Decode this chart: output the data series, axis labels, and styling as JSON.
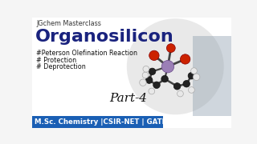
{
  "bg_color": "#f5f5f5",
  "bottom_bar_color": "#1a5fb4",
  "title_small": "JGchem Masterclass",
  "title_main": "Organosilicon",
  "line1": "#Peterson Olefination Reaction",
  "line2": "# Protection",
  "line3": "# Deprotection",
  "part_text": "Part-4",
  "bottom_text": "M.Sc. Chemistry |CSIR-NET | GATE",
  "title_small_color": "#333333",
  "title_main_color": "#1a237e",
  "hashtag_color": "#111111",
  "part_color": "#111111",
  "bottom_text_color": "#ffffff",
  "circle_bg_color": "#d8d8d8",
  "si_color": "#9b7fb6",
  "red_color": "#cc2200",
  "carbon_color": "#222222",
  "white_ball": "#e8e8e8",
  "bond_color": "#444444",
  "person_bg": "#a0b8c8"
}
